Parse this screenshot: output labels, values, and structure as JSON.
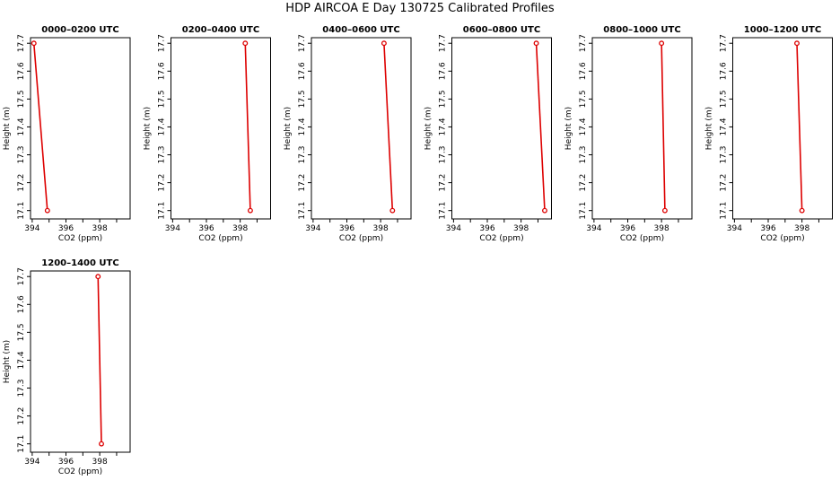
{
  "page": {
    "title": "HDP AIRCOA E  Day 130725  Calibrated Profiles"
  },
  "chart_data": [
    {
      "type": "line",
      "title": "0000–0200 UTC",
      "xlabel": "CO2 (ppm)",
      "ylabel": "Height (m)",
      "x_ticks": [
        "394",
        "396",
        "398"
      ],
      "y_ticks": [
        "17.1",
        "17.2",
        "17.3",
        "17.4",
        "17.5",
        "17.6",
        "17.7"
      ],
      "xlim": [
        393.9,
        399.8
      ],
      "ylim": [
        17.07,
        17.72
      ],
      "grid": false,
      "color": "#dd0000",
      "points": [
        {
          "x": 394.1,
          "y": 17.7
        },
        {
          "x": 394.9,
          "y": 17.1
        }
      ]
    },
    {
      "type": "line",
      "title": "0200–0400 UTC",
      "xlabel": "CO2 (ppm)",
      "ylabel": "Height (m)",
      "x_ticks": [
        "394",
        "396",
        "398"
      ],
      "y_ticks": [
        "17.1",
        "17.2",
        "17.3",
        "17.4",
        "17.5",
        "17.6",
        "17.7"
      ],
      "xlim": [
        393.9,
        399.8
      ],
      "ylim": [
        17.07,
        17.72
      ],
      "grid": false,
      "color": "#dd0000",
      "points": [
        {
          "x": 398.3,
          "y": 17.7
        },
        {
          "x": 398.6,
          "y": 17.1
        }
      ]
    },
    {
      "type": "line",
      "title": "0400–0600 UTC",
      "xlabel": "CO2 (ppm)",
      "ylabel": "Height (m)",
      "x_ticks": [
        "394",
        "396",
        "398"
      ],
      "y_ticks": [
        "17.1",
        "17.2",
        "17.3",
        "17.4",
        "17.5",
        "17.6",
        "17.7"
      ],
      "xlim": [
        393.9,
        399.8
      ],
      "ylim": [
        17.07,
        17.72
      ],
      "grid": false,
      "color": "#dd0000",
      "points": [
        {
          "x": 398.2,
          "y": 17.7
        },
        {
          "x": 398.7,
          "y": 17.1
        }
      ]
    },
    {
      "type": "line",
      "title": "0600–0800 UTC",
      "xlabel": "CO2 (ppm)",
      "ylabel": "Height (m)",
      "x_ticks": [
        "394",
        "396",
        "398"
      ],
      "y_ticks": [
        "17.1",
        "17.2",
        "17.3",
        "17.4",
        "17.5",
        "17.6",
        "17.7"
      ],
      "xlim": [
        393.9,
        399.8
      ],
      "ylim": [
        17.07,
        17.72
      ],
      "grid": false,
      "color": "#dd0000",
      "points": [
        {
          "x": 398.9,
          "y": 17.7
        },
        {
          "x": 399.4,
          "y": 17.1
        }
      ]
    },
    {
      "type": "line",
      "title": "0800–1000 UTC",
      "xlabel": "CO2 (ppm)",
      "ylabel": "Height (m)",
      "x_ticks": [
        "394",
        "396",
        "398"
      ],
      "y_ticks": [
        "17.1",
        "17.2",
        "17.3",
        "17.4",
        "17.5",
        "17.6",
        "17.7"
      ],
      "xlim": [
        393.9,
        399.8
      ],
      "ylim": [
        17.07,
        17.72
      ],
      "grid": false,
      "color": "#dd0000",
      "points": [
        {
          "x": 398.0,
          "y": 17.7
        },
        {
          "x": 398.2,
          "y": 17.1
        }
      ]
    },
    {
      "type": "line",
      "title": "1000–1200 UTC",
      "xlabel": "CO2 (ppm)",
      "ylabel": "Height (m)",
      "x_ticks": [
        "394",
        "396",
        "398"
      ],
      "y_ticks": [
        "17.1",
        "17.2",
        "17.3",
        "17.4",
        "17.5",
        "17.6",
        "17.7"
      ],
      "xlim": [
        393.9,
        399.8
      ],
      "ylim": [
        17.07,
        17.72
      ],
      "grid": false,
      "color": "#dd0000",
      "points": [
        {
          "x": 397.7,
          "y": 17.7
        },
        {
          "x": 398.0,
          "y": 17.1
        }
      ]
    },
    {
      "type": "line",
      "title": "1200–1400 UTC",
      "xlabel": "CO2 (ppm)",
      "ylabel": "Height (m)",
      "x_ticks": [
        "394",
        "396",
        "398"
      ],
      "y_ticks": [
        "17.1",
        "17.2",
        "17.3",
        "17.4",
        "17.5",
        "17.6",
        "17.7"
      ],
      "xlim": [
        393.9,
        399.8
      ],
      "ylim": [
        17.07,
        17.72
      ],
      "grid": false,
      "color": "#dd0000",
      "points": [
        {
          "x": 397.9,
          "y": 17.7
        },
        {
          "x": 398.1,
          "y": 17.1
        }
      ]
    }
  ]
}
